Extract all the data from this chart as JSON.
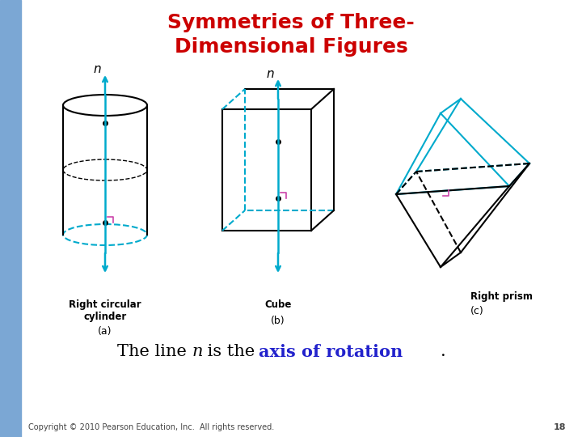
{
  "title_line1": "Symmetries of Three-",
  "title_line2": "Dimensional Figures",
  "title_color": "#cc0000",
  "title_fontsize": 18,
  "subtitle_color_normal": "#000000",
  "subtitle_color_highlight": "#2222cc",
  "subtitle_fontsize": 15,
  "copyright_text": "Copyright © 2010 Pearson Education, Inc.  All rights reserved.",
  "copyright_fontsize": 7,
  "page_number": "18",
  "bg_color": "#ffffff",
  "left_bar_color": "#7ba7d4",
  "axis_arrow_color": "#00aacc",
  "figure_line_color": "#000000",
  "dashed_cyan_color": "#00aacc",
  "dashed_black_color": "#333333",
  "right_angle_color": "#cc44aa",
  "label_a": "(a)",
  "label_b": "(b)",
  "label_c": "(c)",
  "label_cylinder": "Right circular",
  "label_cylinder2": "cylinder",
  "label_cube": "Cube",
  "label_prism": "Right prism",
  "label_n": "n"
}
